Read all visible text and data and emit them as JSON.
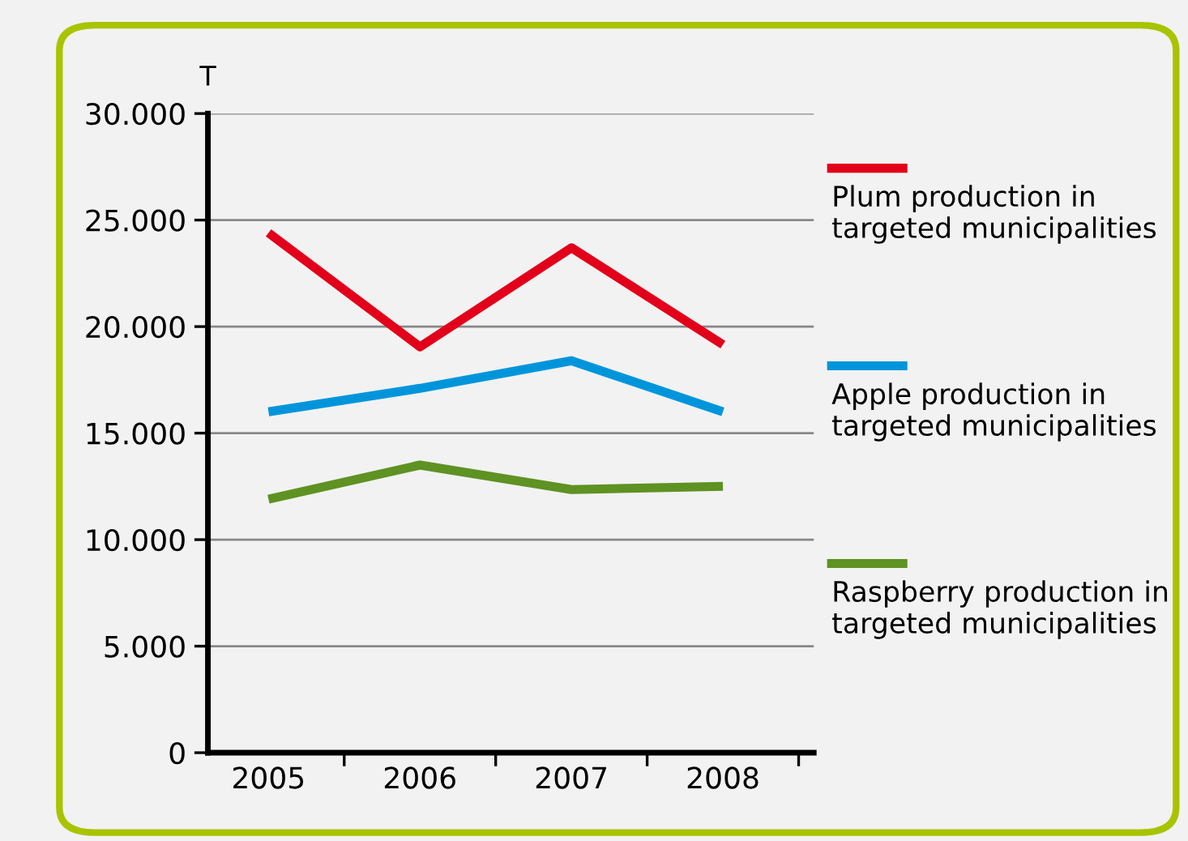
{
  "chart_data": {
    "type": "line",
    "ylabel": "T",
    "categories": [
      "2005",
      "2006",
      "2007",
      "2008"
    ],
    "series": [
      {
        "name": "Plum production in targeted municipalities",
        "color": "#e2001a",
        "values": [
          24400,
          19050,
          23700,
          19150
        ]
      },
      {
        "name": "Apple production in targeted municipalities",
        "color": "#0095db",
        "values": [
          16000,
          17100,
          18400,
          16000
        ]
      },
      {
        "name": "Raspberry production in targeted municipalities",
        "color": "#5e9222",
        "values": [
          11900,
          13500,
          12350,
          12500
        ]
      }
    ],
    "ylim": [
      0,
      30000
    ],
    "yticks": [
      {
        "value": 0,
        "label": "0"
      },
      {
        "value": 5000,
        "label": "5.000"
      },
      {
        "value": 10000,
        "label": "10.000"
      },
      {
        "value": 15000,
        "label": "15.000"
      },
      {
        "value": 20000,
        "label": "20.000"
      },
      {
        "value": 25000,
        "label": "25.000"
      },
      {
        "value": 30000,
        "label": "30.000"
      }
    ],
    "grid": "y",
    "legend": "right",
    "marker": "none",
    "line_style": "solid"
  }
}
